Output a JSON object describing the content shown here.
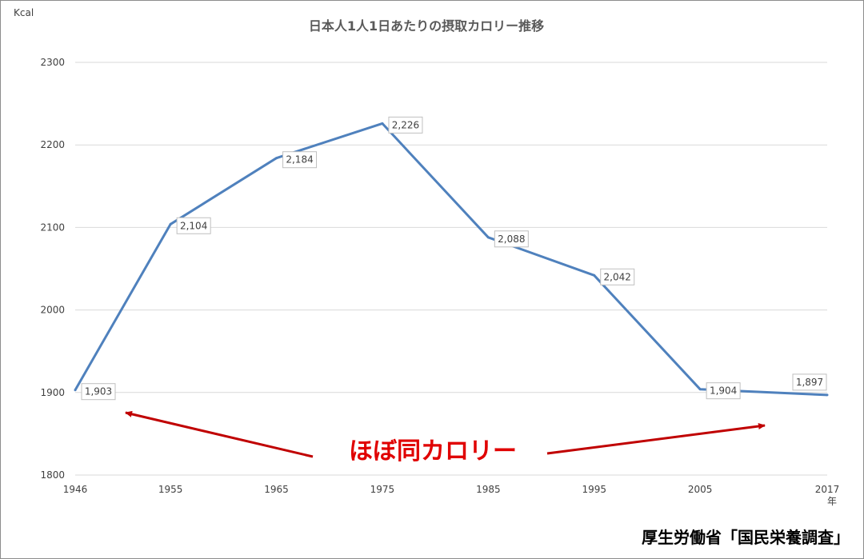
{
  "chart_data": {
    "type": "line",
    "title": "日本人1人1日あたりの摂取カロリー推移",
    "ylabel": "Kcal",
    "xlabel": "年",
    "categories": [
      "1946",
      "1955",
      "1965",
      "1975",
      "1985",
      "1995",
      "2005",
      "2017"
    ],
    "series": [
      {
        "values": [
          1903,
          2104,
          2184,
          2226,
          2088,
          2042,
          1904,
          1897
        ]
      }
    ],
    "data_labels": [
      "1,903",
      "2,104",
      "2,184",
      "2,226",
      "2,088",
      "2,042",
      "1,904",
      "1,897"
    ],
    "ylim": [
      1800,
      2300
    ],
    "yticks": [
      "1800",
      "1900",
      "2000",
      "2100",
      "2200",
      "2300"
    ],
    "grid": true,
    "annotation": "ほぼ同カロリー",
    "source": "厚生労働省「国民栄養調査」",
    "colors": {
      "line": "#4f81bd",
      "grid": "#d9d9d9",
      "annotation": "#e00000",
      "arrow": "#c00000"
    }
  }
}
